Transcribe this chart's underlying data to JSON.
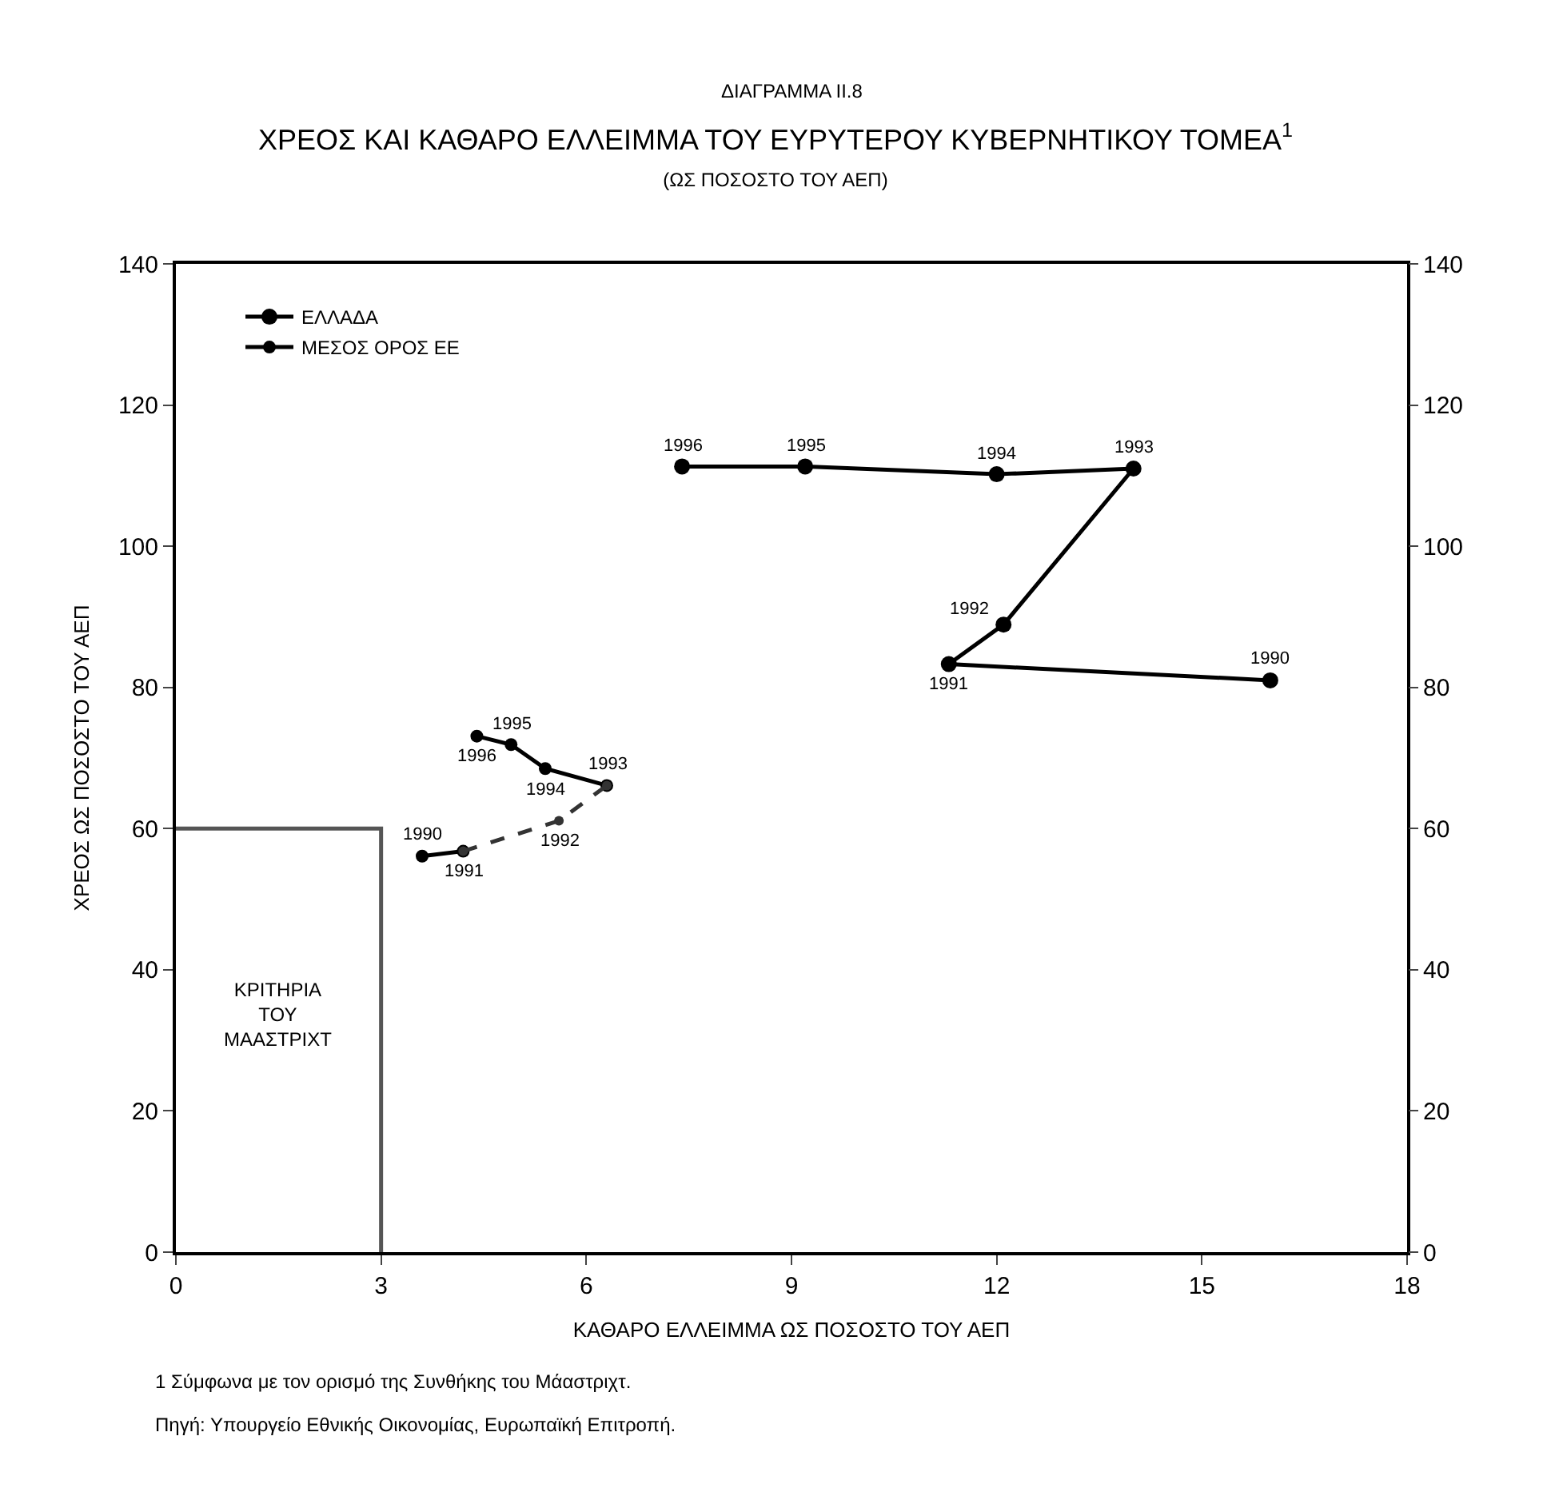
{
  "chart_data": {
    "type": "line",
    "title": "ΧΡΕΟΣ ΚΑΙ ΚΑΘΑΡΟ ΕΛΛΕΙΜΜΑ ΤΟΥ ΕΥΡΥΤΕΡΟΥ ΚΥΒΕΡΝΗΤΙΚΟΥ ΤΟΜΕΑ$^{1}$",
    "subtitle": "(ΩΣ ΠΟΣΟΣΤΟ ΤΟΥ ΑΕΠ)",
    "xlabel": "ΚΑΘΑΡΟ ΕΛΛΕΙΜΜΑ ΩΣ ΠΟΣΟΣΤΟ ΤΟΥ ΑΕΠ",
    "ylabel": "ΧΡΕΟΣ ΩΣ ΠΟΣΟΣΤΟ ΤΟΥ ΑΕΠ",
    "annotations": [
      "ΔΙΑΓΡΑΜΜΑ ΙΙ.8",
      "ΚΡΙΤΗΡΙΑ\nΤΟΥ\nΜΑΑΣΤΡΙΧΤ",
      "1 Σύμφωνα με τον ορισμό της Συνθήκης του Μάαστριχτ.",
      "Πηγή: Υπουργείο Εθνικής Οικονομίας, Ευρωπαϊκή Επιτροπή.",
      {
        "text": "1990",
        "x": 16.0,
        "y": 81.0
      },
      {
        "text": "1991",
        "x": 11.3,
        "y": 83.3
      },
      {
        "text": "1992",
        "x": 12.1,
        "y": 88.9
      },
      {
        "text": "1993",
        "x": 14.0,
        "y": 111.0
      },
      {
        "text": "1994",
        "x": 12.0,
        "y": 110.2
      },
      {
        "text": "1995",
        "x": 9.2,
        "y": 111.3
      },
      {
        "text": "1996",
        "x": 7.4,
        "y": 111.3
      },
      {
        "text": "1990",
        "x": 3.6,
        "y": 56.1
      },
      {
        "text": "1991",
        "x": 4.2,
        "y": 56.8
      },
      {
        "text": "1992",
        "x": 5.6,
        "y": 61.1
      },
      {
        "text": "1993",
        "x": 6.3,
        "y": 66.1
      },
      {
        "text": "1994",
        "x": 5.4,
        "y": 68.5
      },
      {
        "text": "1995",
        "x": 4.9,
        "y": 71.9
      },
      {
        "text": "1996",
        "x": 4.4,
        "y": 73.1
      }
    ],
    "series": [
      {
        "name": "ΕΛΛΑΔΑ",
        "color": "#000000",
        "marker": "circle",
        "line_style": "solid",
        "x": [
          16.0,
          11.3,
          12.1,
          14.0,
          12.0,
          9.2,
          7.4
        ],
        "values": [
          81.0,
          83.3,
          88.9,
          111.0,
          110.2,
          111.3,
          111.3
        ]
      },
      {
        "name": "ΜΕΣΟΣ ΟΡΟΣ ΕΕ",
        "color": "#000000",
        "marker": "circle",
        "line_style": "solid",
        "x": [
          3.6,
          4.2,
          5.6,
          6.3,
          5.4,
          4.9,
          4.4
        ],
        "values": [
          56.1,
          56.8,
          null,
          66.1,
          68.5,
          71.9,
          73.1
        ]
      },
      {
        "color": "#333333",
        "marker": "circle",
        "line_style": "dashed",
        "x": [
          4.2,
          5.6,
          6.3
        ],
        "values": [
          56.8,
          61.1,
          66.1
        ]
      },
      {
        "color": "#555555",
        "marker": "none",
        "line_style": "solid",
        "x": [
          0,
          3,
          3
        ],
        "values": [
          60,
          60,
          0
        ]
      }
    ],
    "xlim": [
      0,
      18
    ],
    "xticks": [
      0,
      3,
      6,
      9,
      12,
      15,
      18
    ],
    "ylim": [
      0,
      140
    ],
    "yticks": [
      0,
      20,
      40,
      60,
      80,
      100,
      120,
      140
    ],
    "y2lim": [
      0,
      140
    ],
    "y2ticks": [
      0,
      20,
      40,
      60,
      80,
      100,
      120,
      140
    ],
    "legend": "top left"
  }
}
